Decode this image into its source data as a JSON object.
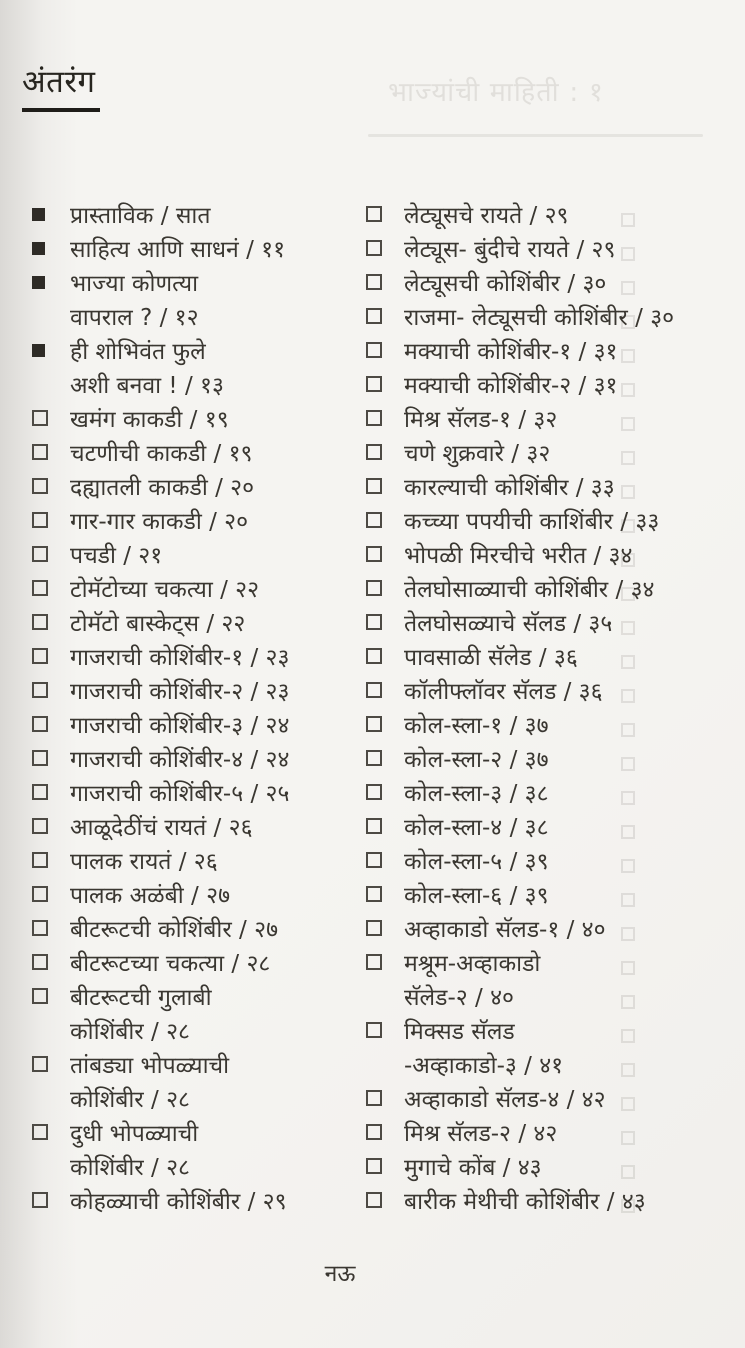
{
  "page": {
    "header_title": "अंतरंग",
    "footer_page_number": "नऊ",
    "bleedthrough_header": "भाज्यांची माहिती : १"
  },
  "colors": {
    "paper": "#f5f4f1",
    "ink": "#3a3731",
    "header_ink": "#27251f",
    "marker": "#2e2b26",
    "bleedthrough": "#7d776f"
  },
  "toc": {
    "left_column_items": [
      {
        "marker": "filled",
        "lines": [
          "प्रास्ताविक / सात"
        ]
      },
      {
        "marker": "filled",
        "lines": [
          "साहित्य आणि साधनं / ११"
        ]
      },
      {
        "marker": "filled",
        "lines": [
          "भाज्या कोणत्या",
          "वापराल ? / १२"
        ]
      },
      {
        "marker": "filled",
        "lines": [
          "ही शोभिवंत फुले",
          "अशी बनवा ! / १३"
        ]
      },
      {
        "marker": "empty",
        "lines": [
          "खमंग काकडी /  १९"
        ]
      },
      {
        "marker": "empty",
        "lines": [
          "चटणीची काकडी / १९"
        ]
      },
      {
        "marker": "empty",
        "lines": [
          "दह्यातली काकडी / २०"
        ]
      },
      {
        "marker": "empty",
        "lines": [
          "गार-गार काकडी  / २०"
        ]
      },
      {
        "marker": "empty",
        "lines": [
          "पचडी / २१"
        ]
      },
      {
        "marker": "empty",
        "lines": [
          "टोमॅटोच्या चकत्या / २२"
        ]
      },
      {
        "marker": "empty",
        "lines": [
          "टोमॅटो बास्केट्स  / २२"
        ]
      },
      {
        "marker": "empty",
        "lines": [
          "गाजराची कोशिंबीर-१ / २३"
        ]
      },
      {
        "marker": "empty",
        "lines": [
          "गाजराची कोशिंबीर-२ / २३"
        ]
      },
      {
        "marker": "empty",
        "lines": [
          "गाजराची कोशिंबीर-३ / २४"
        ]
      },
      {
        "marker": "empty",
        "lines": [
          "गाजराची कोशिंबीर-४ / २४"
        ]
      },
      {
        "marker": "empty",
        "lines": [
          "गाजराची कोशिंबीर-५ / २५"
        ]
      },
      {
        "marker": "empty",
        "lines": [
          "आळूदेठींचं रायतं / २६"
        ]
      },
      {
        "marker": "empty",
        "lines": [
          "पालक रायतं / २६"
        ]
      },
      {
        "marker": "empty",
        "lines": [
          "पालक अळंबी / २७"
        ]
      },
      {
        "marker": "empty",
        "lines": [
          "बीटरूटची कोशिंबीर / २७"
        ]
      },
      {
        "marker": "empty",
        "lines": [
          "बीटरूटच्या चकत्या / २८"
        ]
      },
      {
        "marker": "empty",
        "lines": [
          "बीटरूटची गुलाबी",
          "कोशिंबीर / २८"
        ]
      },
      {
        "marker": "empty",
        "lines": [
          "तांबड्या भोपळ्याची",
          "कोशिंबीर / २८"
        ]
      },
      {
        "marker": "empty",
        "lines": [
          "दुधी भोपळ्याची",
          "कोशिंबीर / २८"
        ]
      },
      {
        "marker": "empty",
        "lines": [
          "कोहळ्याची कोशिंबीर / २९"
        ]
      }
    ],
    "right_column_items": [
      {
        "marker": "empty",
        "lines": [
          "लेट्यूसचे रायते / २९"
        ]
      },
      {
        "marker": "empty",
        "lines": [
          "लेट्यूस- बुंदीचे रायते / २९"
        ]
      },
      {
        "marker": "empty",
        "lines": [
          "लेट्यूसची कोशिंबीर / ३०"
        ]
      },
      {
        "marker": "empty",
        "lines": [
          "राजमा- लेट्यूसची कोशिंबीर / ३०"
        ]
      },
      {
        "marker": "empty",
        "lines": [
          "मक्याची कोशिंबीर-१ / ३१"
        ]
      },
      {
        "marker": "empty",
        "lines": [
          "मक्याची कोशिंबीर-२ / ३१"
        ]
      },
      {
        "marker": "empty",
        "lines": [
          "मिश्र सॅलड-१ / ३२"
        ]
      },
      {
        "marker": "empty",
        "lines": [
          "चणे शुक्रवारे / ३२"
        ]
      },
      {
        "marker": "empty",
        "lines": [
          "कारल्याची कोशिंबीर / ३३"
        ]
      },
      {
        "marker": "empty",
        "lines": [
          "कच्च्या पपयीची काशिंबीर / ३३"
        ]
      },
      {
        "marker": "empty",
        "lines": [
          "भोपळी मिरचीचे भरीत / ३४"
        ]
      },
      {
        "marker": "empty",
        "lines": [
          "तेलघोसाळ्याची कोशिंबीर / ३४"
        ]
      },
      {
        "marker": "empty",
        "lines": [
          "तेलघोसळ्याचे सॅलड / ३५"
        ]
      },
      {
        "marker": "empty",
        "lines": [
          "पावसाळी सॅलेड / ३६"
        ]
      },
      {
        "marker": "empty",
        "lines": [
          "कॉलीफ्लॉवर सॅलड / ३६"
        ]
      },
      {
        "marker": "empty",
        "lines": [
          "कोल-स्ला-१ / ३७"
        ]
      },
      {
        "marker": "empty",
        "lines": [
          "कोल-स्ला-२ / ३७"
        ]
      },
      {
        "marker": "empty",
        "lines": [
          "कोल-स्ला-३ / ३८"
        ]
      },
      {
        "marker": "empty",
        "lines": [
          "कोल-स्ला-४ / ३८"
        ]
      },
      {
        "marker": "empty",
        "lines": [
          "कोल-स्ला-५ / ३९"
        ]
      },
      {
        "marker": "empty",
        "lines": [
          "कोल-स्ला-६ / ३९"
        ]
      },
      {
        "marker": "empty",
        "lines": [
          "अव्हाकाडो सॅलड-१ / ४०"
        ]
      },
      {
        "marker": "empty",
        "lines": [
          "मश्रूम-अव्हाकाडो",
          "सॅलेड-२ / ४०"
        ]
      },
      {
        "marker": "empty",
        "lines": [
          "मिक्सड सॅलड",
          "-अव्हाकाडो-३ / ४१"
        ]
      },
      {
        "marker": "empty",
        "lines": [
          "अव्हाकाडो सॅलड-४ / ४२"
        ]
      },
      {
        "marker": "empty",
        "lines": [
          "मिश्र सॅलड-२ / ४२"
        ]
      },
      {
        "marker": "empty",
        "lines": [
          "मुगाचे कोंब / ४३"
        ]
      },
      {
        "marker": "empty",
        "lines": [
          "बारीक मेथीची कोशिंबीर / ४३"
        ]
      }
    ]
  }
}
